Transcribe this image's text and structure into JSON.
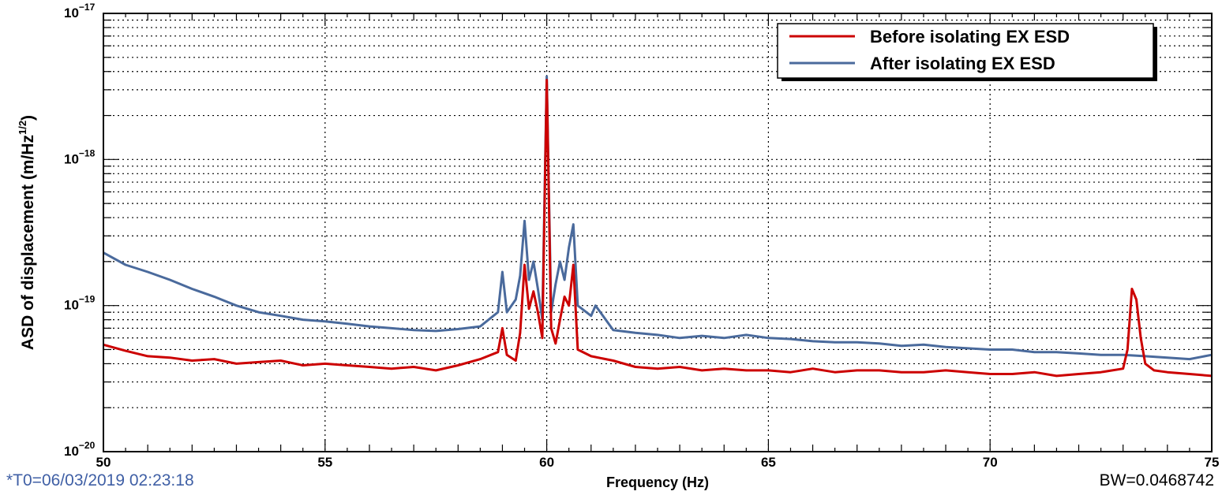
{
  "chart_data": {
    "type": "line",
    "xlabel": "Frequency (Hz)",
    "ylabel": "ASD of displacement (m/Hz",
    "ylabel_sup": "1/2",
    "ylabel_end": ")",
    "xlim": [
      50,
      75
    ],
    "ylim": [
      1e-20,
      1e-17
    ],
    "yscale": "log",
    "grid": true,
    "legend_position": "top-right",
    "x_ticks": [
      "50",
      "55",
      "60",
      "65",
      "70",
      "75"
    ],
    "y_ticks": [
      {
        "base": "10",
        "exp": "−20"
      },
      {
        "base": "10",
        "exp": "−19"
      },
      {
        "base": "10",
        "exp": "−18"
      },
      {
        "base": "10",
        "exp": "−17"
      }
    ],
    "series": [
      {
        "name": "Before isolating EX ESD",
        "color": "#cc0000",
        "x": [
          50.0,
          50.5,
          51.0,
          51.5,
          52.0,
          52.5,
          53.0,
          53.5,
          54.0,
          54.5,
          55.0,
          55.5,
          56.0,
          56.5,
          57.0,
          57.5,
          58.0,
          58.5,
          58.9,
          59.0,
          59.1,
          59.3,
          59.4,
          59.5,
          59.6,
          59.7,
          59.8,
          59.9,
          60.0,
          60.1,
          60.2,
          60.3,
          60.4,
          60.5,
          60.6,
          60.7,
          61.0,
          61.5,
          62.0,
          62.5,
          63.0,
          63.5,
          64.0,
          64.5,
          65.0,
          65.5,
          66.0,
          66.5,
          67.0,
          67.5,
          68.0,
          68.5,
          69.0,
          69.5,
          70.0,
          70.5,
          71.0,
          71.5,
          72.0,
          72.5,
          73.0,
          73.1,
          73.2,
          73.3,
          73.4,
          73.5,
          73.7,
          74.0,
          74.5,
          75.0
        ],
        "y": [
          5.4e-20,
          4.9e-20,
          4.5e-20,
          4.4e-20,
          4.2e-20,
          4.3e-20,
          4e-20,
          4.1e-20,
          4.2e-20,
          3.9e-20,
          4e-20,
          3.9e-20,
          3.8e-20,
          3.7e-20,
          3.8e-20,
          3.6e-20,
          3.9e-20,
          4.3e-20,
          4.8e-20,
          7e-20,
          4.6e-20,
          4.2e-20,
          6.5e-20,
          1.9e-19,
          9.5e-20,
          1.25e-19,
          9e-20,
          6e-20,
          3.5e-18,
          7e-20,
          5.5e-20,
          8e-20,
          1.15e-19,
          1e-19,
          1.9e-19,
          5e-20,
          4.5e-20,
          4.2e-20,
          3.8e-20,
          3.7e-20,
          3.8e-20,
          3.6e-20,
          3.7e-20,
          3.6e-20,
          3.6e-20,
          3.5e-20,
          3.7e-20,
          3.5e-20,
          3.6e-20,
          3.6e-20,
          3.5e-20,
          3.5e-20,
          3.6e-20,
          3.5e-20,
          3.4e-20,
          3.4e-20,
          3.5e-20,
          3.3e-20,
          3.4e-20,
          3.5e-20,
          3.7e-20,
          5e-20,
          1.3e-19,
          1.1e-19,
          6e-20,
          4e-20,
          3.6e-20,
          3.5e-20,
          3.4e-20,
          3.3e-20
        ]
      },
      {
        "name": "After isolating EX ESD",
        "color": "#4a6a9c",
        "x": [
          50.0,
          50.5,
          51.0,
          51.5,
          52.0,
          52.5,
          53.0,
          53.5,
          54.0,
          54.5,
          55.0,
          55.5,
          56.0,
          56.5,
          57.0,
          57.5,
          58.0,
          58.5,
          58.9,
          59.0,
          59.1,
          59.3,
          59.4,
          59.5,
          59.6,
          59.7,
          59.8,
          59.9,
          60.0,
          60.1,
          60.2,
          60.3,
          60.4,
          60.5,
          60.6,
          60.7,
          61.0,
          61.1,
          61.5,
          62.0,
          62.5,
          63.0,
          63.5,
          64.0,
          64.5,
          65.0,
          65.5,
          66.0,
          66.5,
          67.0,
          67.5,
          68.0,
          68.5,
          69.0,
          69.5,
          70.0,
          70.5,
          71.0,
          71.5,
          72.0,
          72.5,
          73.0,
          73.5,
          74.0,
          74.5,
          75.0
        ],
        "y": [
          2.3e-19,
          1.9e-19,
          1.7e-19,
          1.5e-19,
          1.3e-19,
          1.15e-19,
          1e-19,
          9e-20,
          8.5e-20,
          8e-20,
          7.8e-20,
          7.5e-20,
          7.2e-20,
          7e-20,
          6.8e-20,
          6.7e-20,
          6.9e-20,
          7.2e-20,
          9e-20,
          1.7e-19,
          9e-20,
          1.1e-19,
          1.6e-19,
          3.8e-19,
          1.5e-19,
          2e-19,
          1.3e-19,
          8e-20,
          3.7e-18,
          9e-20,
          1.4e-19,
          2e-19,
          1.5e-19,
          2.5e-19,
          3.6e-19,
          1e-19,
          8.5e-20,
          1e-19,
          6.8e-20,
          6.5e-20,
          6.3e-20,
          6e-20,
          6.2e-20,
          6e-20,
          6.3e-20,
          6e-20,
          5.9e-20,
          5.7e-20,
          5.6e-20,
          5.6e-20,
          5.5e-20,
          5.3e-20,
          5.4e-20,
          5.2e-20,
          5.1e-20,
          5e-20,
          5e-20,
          4.8e-20,
          4.8e-20,
          4.7e-20,
          4.6e-20,
          4.6e-20,
          4.5e-20,
          4.4e-20,
          4.3e-20,
          4.6e-20
        ]
      }
    ]
  },
  "footer": {
    "t0": "*T0=06/03/2019 02:23:18",
    "bw": "BW=0.0468742"
  }
}
